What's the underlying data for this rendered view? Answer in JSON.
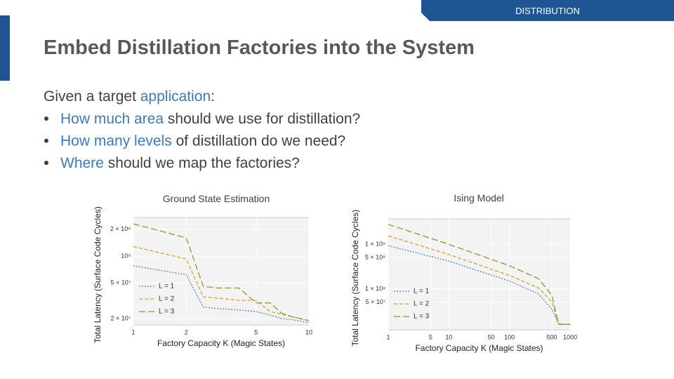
{
  "header": {
    "tag": "DISTRIBUTION",
    "title": "Embed Distillation Factories into the System"
  },
  "body": {
    "intro": {
      "before": "Given a target ",
      "highlight": "application",
      "after": ":"
    },
    "bullets": [
      {
        "highlight": "How much area",
        "rest": " should we use for distillation?"
      },
      {
        "highlight": "How many levels",
        "rest": " of distillation do we need?"
      },
      {
        "highlight": "Where",
        "rest": " should we map the factories?"
      }
    ]
  },
  "chart_data": [
    {
      "type": "line",
      "title": "Ground State Estimation",
      "xlabel": "Factory Capacity K (Magic States)",
      "ylabel": "Total Latency (Surface Code Cycles)",
      "xscale": "log",
      "yscale": "log",
      "grid": true,
      "legend": "lower left",
      "x": [
        1,
        2,
        2.5,
        3,
        4,
        5,
        6,
        7,
        8,
        10
      ],
      "xlim": [
        1,
        10
      ],
      "xticks": [
        1,
        2,
        5,
        10
      ],
      "ylim": [
        17000000,
        270000000
      ],
      "yticks": [
        {
          "value": 20000000,
          "label": "2 × 10⁷"
        },
        {
          "value": 50000000,
          "label": "5 × 10⁷"
        },
        {
          "value": 100000000,
          "label": "10⁸"
        },
        {
          "value": 200000000,
          "label": "2 × 10⁸"
        }
      ],
      "series": [
        {
          "name": "L = 1",
          "color": "#5b7fc0",
          "dash": "2,2",
          "values": [
            78000000,
            62000000,
            27000000,
            26000000,
            25000000,
            24000000,
            22000000,
            20000000,
            19500000,
            18000000
          ]
        },
        {
          "name": "L = 2",
          "color": "#d6a028",
          "dash": "5,3",
          "values": [
            128000000,
            93000000,
            35000000,
            34000000,
            32000000,
            32000000,
            24000000,
            22500000,
            21000000,
            19000000
          ]
        },
        {
          "name": "L = 3",
          "color": "#8a9a2e",
          "dash": "9,4",
          "values": [
            230000000,
            160000000,
            46000000,
            44000000,
            44000000,
            30000000,
            30000000,
            23000000,
            21000000,
            19000000
          ]
        }
      ]
    },
    {
      "type": "line",
      "title": "Ising Model",
      "xlabel": "Factory Capacity K (Magic States)",
      "ylabel": "Total Latency (Surface Code Cycles)",
      "xscale": "log",
      "yscale": "log",
      "grid": true,
      "legend": "lower left",
      "x": [
        1,
        10,
        100,
        300,
        500,
        650,
        1000
      ],
      "xlim": [
        1,
        1000
      ],
      "xticks": [
        1,
        5,
        10,
        50,
        100,
        500,
        1000
      ],
      "ylim": [
        12000000,
        3700000000
      ],
      "yticks": [
        {
          "value": 50000000,
          "label": "5 × 10⁷"
        },
        {
          "value": 100000000,
          "label": "1 × 10⁸"
        },
        {
          "value": 500000000,
          "label": "5 × 10⁸"
        },
        {
          "value": 1000000000,
          "label": "1 × 10⁹"
        }
      ],
      "series": [
        {
          "name": "L = 1",
          "color": "#5b7fc0",
          "dash": "2,2",
          "values": [
            930000000,
            420000000,
            150000000,
            77000000,
            35000000,
            16000000,
            16000000
          ]
        },
        {
          "name": "L = 2",
          "color": "#d6a028",
          "dash": "5,3",
          "values": [
            1550000000,
            590000000,
            200000000,
            105000000,
            51000000,
            16000000,
            16000000
          ]
        },
        {
          "name": "L = 3",
          "color": "#8a9a2e",
          "dash": "9,4",
          "values": [
            2800000000,
            1000000000,
            330000000,
            170000000,
            72000000,
            16000000,
            16000000
          ]
        }
      ]
    }
  ]
}
